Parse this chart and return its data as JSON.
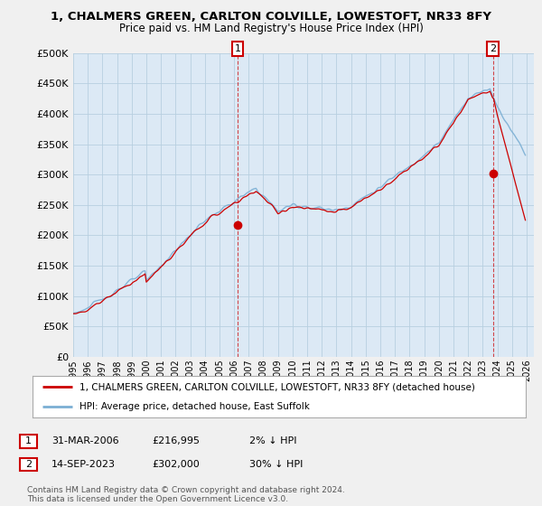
{
  "title": "1, CHALMERS GREEN, CARLTON COLVILLE, LOWESTOFT, NR33 8FY",
  "subtitle": "Price paid vs. HM Land Registry's House Price Index (HPI)",
  "ytick_values": [
    0,
    50000,
    100000,
    150000,
    200000,
    250000,
    300000,
    350000,
    400000,
    450000,
    500000
  ],
  "ylim": [
    0,
    500000
  ],
  "xlim_start": 1995.0,
  "xlim_end": 2026.5,
  "hpi_color": "#7bafd4",
  "price_color": "#cc0000",
  "purchase1_x": 2006.25,
  "purchase1_y": 216995,
  "purchase2_x": 2023.71,
  "purchase2_y": 302000,
  "legend_label_price": "1, CHALMERS GREEN, CARLTON COLVILLE, LOWESTOFT, NR33 8FY (detached house)",
  "legend_label_hpi": "HPI: Average price, detached house, East Suffolk",
  "note1_num": "1",
  "note1_date": "31-MAR-2006",
  "note1_price": "£216,995",
  "note1_hpi": "2% ↓ HPI",
  "note2_num": "2",
  "note2_date": "14-SEP-2023",
  "note2_price": "£302,000",
  "note2_hpi": "30% ↓ HPI",
  "footer": "Contains HM Land Registry data © Crown copyright and database right 2024.\nThis data is licensed under the Open Government Licence v3.0.",
  "background_color": "#f0f0f0",
  "plot_bg_color": "#dce9f5",
  "grid_color": "#b8cfe0"
}
